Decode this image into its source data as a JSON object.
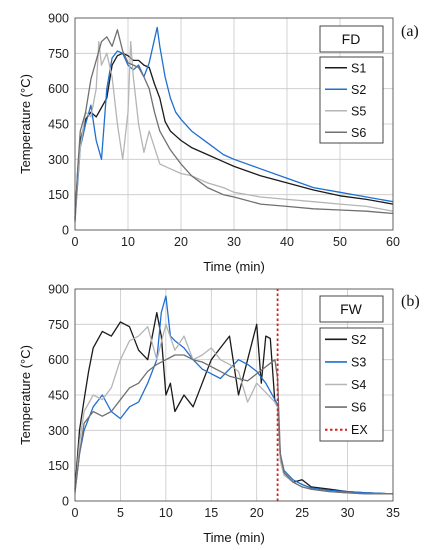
{
  "chart_data": [
    {
      "type": "line",
      "panel_label": "(a)",
      "box_title": "FD",
      "xlabel": "Time (min)",
      "ylabel": "Temperature (°C)",
      "xlim": [
        0,
        60
      ],
      "ylim": [
        0,
        900
      ],
      "xticks": [
        "0",
        "10",
        "20",
        "30",
        "40",
        "50",
        "60"
      ],
      "yticks": [
        "0",
        "150",
        "300",
        "450",
        "600",
        "750",
        "900"
      ],
      "grid": true,
      "legend_position": "right",
      "series": [
        {
          "name": "S1",
          "color": "#1a1a1a",
          "x": [
            0,
            0.5,
            1,
            2,
            3,
            4,
            5,
            6,
            7,
            8,
            9,
            10,
            11,
            12,
            13,
            14,
            15,
            16,
            17,
            18,
            19,
            20,
            22,
            25,
            28,
            30,
            35,
            40,
            45,
            50,
            55,
            60
          ],
          "y": [
            50,
            250,
            380,
            470,
            500,
            480,
            520,
            560,
            700,
            740,
            750,
            740,
            720,
            720,
            700,
            690,
            620,
            560,
            460,
            420,
            400,
            380,
            350,
            320,
            290,
            270,
            230,
            200,
            170,
            145,
            130,
            110
          ]
        },
        {
          "name": "S2",
          "color": "#1f6fd1",
          "x": [
            0,
            0.5,
            1,
            2,
            3,
            4,
            5,
            6,
            7,
            8,
            9,
            10,
            11,
            12,
            13,
            14,
            15,
            15.5,
            16,
            17,
            18,
            19,
            20,
            22,
            25,
            28,
            30,
            35,
            40,
            45,
            50,
            55,
            60
          ],
          "y": [
            40,
            200,
            350,
            450,
            530,
            380,
            300,
            600,
            730,
            760,
            750,
            700,
            680,
            700,
            650,
            710,
            810,
            860,
            780,
            650,
            560,
            500,
            470,
            420,
            370,
            320,
            300,
            260,
            220,
            180,
            160,
            140,
            120
          ]
        },
        {
          "name": "S5",
          "color": "#b5b5b5",
          "x": [
            0,
            0.5,
            1,
            2,
            3,
            4,
            4.5,
            5,
            6,
            7,
            8,
            9,
            10,
            10.5,
            11,
            12,
            13,
            14,
            15,
            16,
            18,
            20,
            22,
            25,
            28,
            30,
            35,
            40,
            45,
            50,
            55,
            60
          ],
          "y": [
            30,
            220,
            350,
            500,
            480,
            600,
            800,
            700,
            750,
            650,
            450,
            300,
            500,
            800,
            650,
            450,
            330,
            420,
            350,
            280,
            260,
            240,
            230,
            200,
            180,
            160,
            140,
            130,
            120,
            110,
            100,
            80
          ]
        },
        {
          "name": "S6",
          "color": "#707070",
          "x": [
            0,
            0.5,
            1,
            2,
            3,
            4,
            5,
            6,
            7,
            8,
            9,
            10,
            11,
            12,
            13,
            14,
            15,
            16,
            18,
            20,
            22,
            25,
            28,
            30,
            35,
            40,
            45,
            50,
            55,
            60
          ],
          "y": [
            40,
            260,
            420,
            500,
            640,
            720,
            800,
            820,
            780,
            850,
            760,
            710,
            700,
            690,
            650,
            600,
            500,
            420,
            340,
            280,
            230,
            180,
            150,
            140,
            110,
            100,
            90,
            85,
            80,
            70
          ]
        }
      ]
    },
    {
      "type": "line",
      "panel_label": "(b)",
      "box_title": "FW",
      "xlabel": "Time (min)",
      "ylabel": "Temperature (°C)",
      "xlim": [
        0,
        35
      ],
      "ylim": [
        0,
        900
      ],
      "xticks": [
        "0",
        "5",
        "10",
        "15",
        "20",
        "25",
        "30",
        "35"
      ],
      "yticks": [
        "0",
        "150",
        "300",
        "450",
        "600",
        "750",
        "900"
      ],
      "grid": true,
      "legend_position": "right",
      "extinguish_time": 22.3,
      "series": [
        {
          "name": "S2",
          "color": "#1a1a1a",
          "x": [
            0,
            0.5,
            1,
            1.5,
            2,
            3,
            4,
            5,
            6,
            7,
            8,
            9,
            9.5,
            10,
            10.5,
            11,
            12,
            13,
            14,
            15,
            16,
            17,
            18,
            19,
            20,
            20.5,
            21,
            21.5,
            22,
            22.3,
            22.6,
            23,
            24,
            25,
            26,
            28,
            30,
            32,
            35
          ],
          "y": [
            50,
            300,
            430,
            550,
            650,
            720,
            700,
            760,
            740,
            640,
            600,
            800,
            700,
            450,
            500,
            380,
            450,
            400,
            500,
            600,
            650,
            700,
            450,
            600,
            750,
            500,
            700,
            690,
            420,
            400,
            180,
            120,
            80,
            90,
            60,
            50,
            40,
            35,
            30
          ]
        },
        {
          "name": "S3",
          "color": "#1f6fd1",
          "x": [
            0,
            0.5,
            1,
            2,
            3,
            4,
            5,
            6,
            7,
            8,
            9,
            9.5,
            10,
            10.5,
            11,
            12,
            13,
            14,
            15,
            16,
            17,
            18,
            19,
            20,
            21,
            22,
            22.3,
            22.6,
            23,
            24,
            25,
            26,
            28,
            30,
            32,
            35
          ],
          "y": [
            40,
            200,
            300,
            400,
            450,
            380,
            350,
            400,
            420,
            500,
            600,
            800,
            870,
            700,
            680,
            650,
            600,
            560,
            540,
            520,
            560,
            600,
            580,
            550,
            500,
            430,
            410,
            200,
            130,
            90,
            70,
            55,
            45,
            40,
            35,
            30
          ]
        },
        {
          "name": "S4",
          "color": "#b5b5b5",
          "x": [
            0,
            0.5,
            1,
            2,
            3,
            4,
            5,
            6,
            7,
            8,
            9,
            10,
            11,
            12,
            13,
            14,
            15,
            16,
            17,
            18,
            19,
            20,
            21,
            22,
            22.3,
            22.6,
            23,
            24,
            25,
            26,
            28,
            30,
            32,
            35
          ],
          "y": [
            30,
            250,
            380,
            450,
            430,
            480,
            600,
            680,
            700,
            740,
            600,
            750,
            640,
            700,
            600,
            620,
            650,
            600,
            580,
            550,
            420,
            500,
            460,
            420,
            400,
            170,
            110,
            80,
            60,
            50,
            40,
            35,
            30,
            30
          ]
        },
        {
          "name": "S6",
          "color": "#707070",
          "x": [
            0,
            0.5,
            1,
            2,
            3,
            4,
            5,
            6,
            7,
            8,
            9,
            10,
            11,
            12,
            13,
            14,
            15,
            16,
            17,
            18,
            19,
            20,
            21,
            22,
            22.3,
            22.6,
            23,
            24,
            25,
            26,
            28,
            30,
            32,
            35
          ],
          "y": [
            40,
            200,
            330,
            380,
            360,
            380,
            430,
            480,
            500,
            550,
            580,
            600,
            620,
            620,
            600,
            590,
            570,
            550,
            530,
            520,
            510,
            540,
            570,
            600,
            520,
            200,
            120,
            80,
            60,
            50,
            40,
            35,
            30,
            30
          ]
        },
        {
          "name": "EX",
          "color": "#d32020",
          "dashed": true,
          "x": [
            22.3,
            22.3
          ],
          "y": [
            0,
            900
          ]
        }
      ]
    }
  ]
}
